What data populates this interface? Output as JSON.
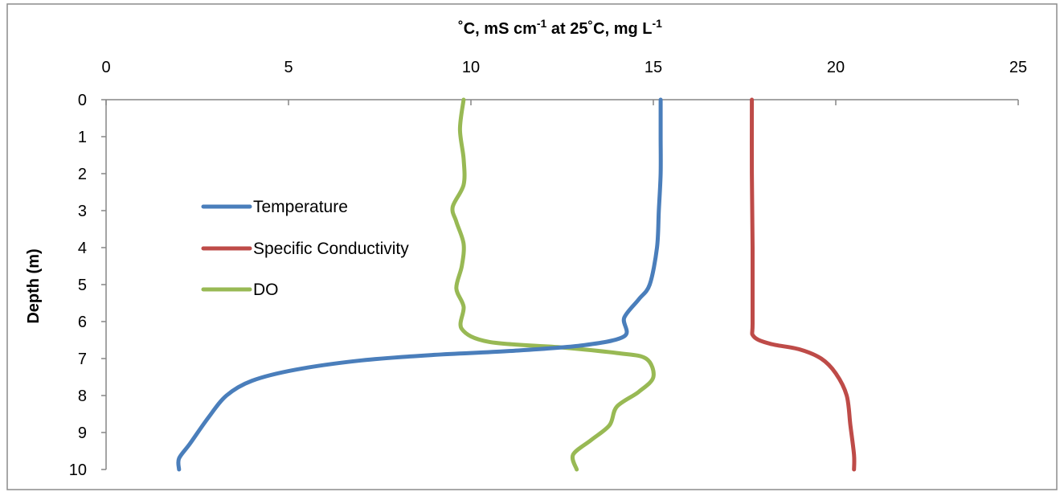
{
  "chart_data": {
    "type": "line",
    "orientation": "depth-profile",
    "x_axis_position": "top",
    "xlabel_parts": {
      "p1": "˚C, mS cm",
      "sup1": "-1",
      "p2": " at 25˚C, mg L",
      "sup2": "-1"
    },
    "ylabel": "Depth (m)",
    "xlim": [
      0,
      25
    ],
    "ylim": [
      0,
      10
    ],
    "y_inverted": true,
    "grid": false,
    "legend_position": "left-center",
    "x_ticks": [
      "0",
      "5",
      "10",
      "15",
      "20",
      "25"
    ],
    "y_ticks": [
      "0",
      "1",
      "2",
      "3",
      "4",
      "5",
      "6",
      "7",
      "8",
      "9",
      "10"
    ],
    "series": [
      {
        "name": "Temperature",
        "color": "#4a7ebb",
        "points": [
          [
            15.2,
            0
          ],
          [
            15.2,
            1
          ],
          [
            15.2,
            2
          ],
          [
            15.15,
            3
          ],
          [
            15.1,
            4
          ],
          [
            14.9,
            5
          ],
          [
            14.6,
            5.4
          ],
          [
            14.2,
            5.9
          ],
          [
            14.2,
            6.4
          ],
          [
            13.0,
            6.65
          ],
          [
            11.0,
            6.8
          ],
          [
            9.0,
            6.9
          ],
          [
            7.0,
            7.05
          ],
          [
            5.2,
            7.3
          ],
          [
            4.0,
            7.6
          ],
          [
            3.3,
            8.0
          ],
          [
            2.8,
            8.6
          ],
          [
            2.3,
            9.3
          ],
          [
            2.0,
            9.7
          ],
          [
            2.0,
            10
          ]
        ]
      },
      {
        "name": "Specific Conductivity",
        "color": "#be4b48",
        "points": [
          [
            17.7,
            0
          ],
          [
            17.7,
            2
          ],
          [
            17.72,
            4
          ],
          [
            17.72,
            6.0
          ],
          [
            17.75,
            6.4
          ],
          [
            18.2,
            6.6
          ],
          [
            19.0,
            6.75
          ],
          [
            19.6,
            7.0
          ],
          [
            20.0,
            7.4
          ],
          [
            20.3,
            8.0
          ],
          [
            20.4,
            8.8
          ],
          [
            20.5,
            9.6
          ],
          [
            20.5,
            10
          ]
        ]
      },
      {
        "name": "DO",
        "color": "#98b954",
        "points": [
          [
            9.8,
            0
          ],
          [
            9.7,
            0.8
          ],
          [
            9.8,
            1.6
          ],
          [
            9.8,
            2.3
          ],
          [
            9.5,
            2.9
          ],
          [
            9.6,
            3.3
          ],
          [
            9.8,
            3.9
          ],
          [
            9.75,
            4.5
          ],
          [
            9.6,
            5.1
          ],
          [
            9.8,
            5.6
          ],
          [
            9.75,
            6.2
          ],
          [
            10.5,
            6.55
          ],
          [
            12.5,
            6.7
          ],
          [
            14.0,
            6.85
          ],
          [
            14.8,
            7.0
          ],
          [
            15.0,
            7.5
          ],
          [
            14.6,
            7.9
          ],
          [
            14.0,
            8.3
          ],
          [
            13.8,
            8.8
          ],
          [
            13.3,
            9.2
          ],
          [
            12.8,
            9.6
          ],
          [
            12.9,
            10
          ]
        ]
      }
    ]
  }
}
